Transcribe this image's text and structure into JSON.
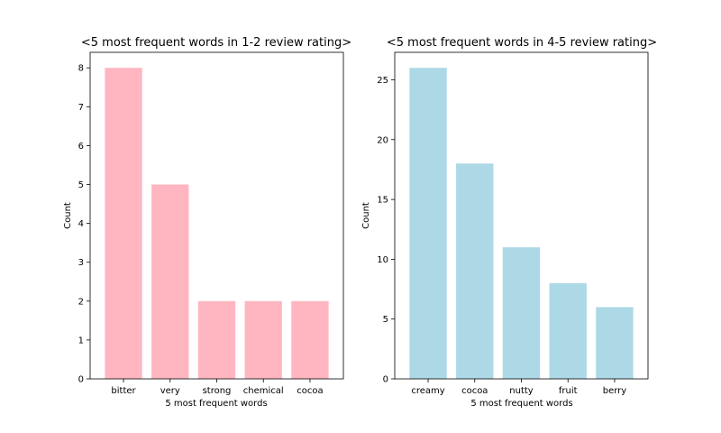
{
  "chart_data": [
    {
      "type": "bar",
      "title": "<5 most frequent words in 1-2 review rating>",
      "xlabel": "5 most frequent words",
      "ylabel": "Count",
      "categories": [
        "bitter",
        "very",
        "strong",
        "chemical",
        "cocoa"
      ],
      "values": [
        8,
        5,
        2,
        2,
        2
      ],
      "ylim": [
        0,
        8.4
      ],
      "yticks": [
        0,
        1,
        2,
        3,
        4,
        5,
        6,
        7,
        8
      ],
      "color": "#ffb6c1",
      "grid": false
    },
    {
      "type": "bar",
      "title": "<5 most frequent words in 4-5 review rating>",
      "xlabel": "5 most frequent words",
      "ylabel": "Count",
      "categories": [
        "creamy",
        "cocoa",
        "nutty",
        "fruit",
        "berry"
      ],
      "values": [
        26,
        18,
        11,
        8,
        6
      ],
      "ylim": [
        0,
        27.3
      ],
      "yticks": [
        0,
        5,
        10,
        15,
        20,
        25
      ],
      "color": "#add8e6",
      "grid": false
    }
  ]
}
